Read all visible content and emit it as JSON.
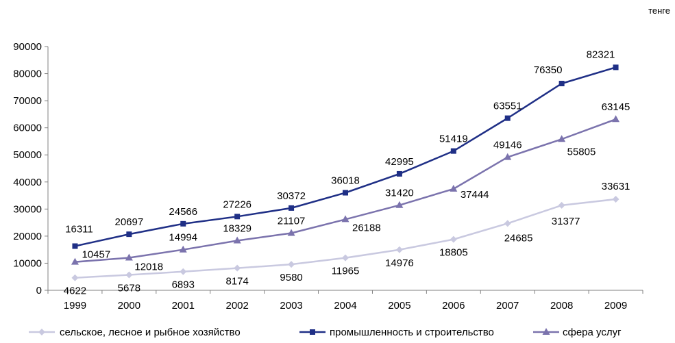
{
  "unit_label": "тенге",
  "chart_data": {
    "type": "line",
    "x": [
      "1999",
      "2000",
      "2001",
      "2002",
      "2003",
      "2004",
      "2005",
      "2006",
      "2007",
      "2008",
      "2009"
    ],
    "ylim": [
      0,
      90000
    ],
    "yticks": [
      0,
      10000,
      20000,
      30000,
      40000,
      50000,
      60000,
      70000,
      80000,
      90000
    ],
    "grid": false,
    "legend": "bottom",
    "series": [
      {
        "name": "сельское, лесное и рыбное хозяйство",
        "values": [
          4622,
          5678,
          6893,
          8174,
          9580,
          11965,
          14976,
          18805,
          24685,
          31377,
          33631
        ],
        "color": "#c9c9e0",
        "marker": "diamond",
        "labels": [
          "4622",
          "5678",
          "6893",
          "8174",
          "9580",
          "11965",
          "14976",
          "18805",
          "24685",
          "31377",
          "33631"
        ]
      },
      {
        "name": "промышленность и строительство",
        "values": [
          16311,
          20697,
          24566,
          27226,
          30372,
          36018,
          42995,
          51419,
          63551,
          76350,
          82321
        ],
        "color": "#1f2f86",
        "marker": "square",
        "labels": [
          "16311",
          "20697",
          "24566",
          "27226",
          "30372",
          "36018",
          "42995",
          "51419",
          "63551",
          "76350",
          "82321"
        ]
      },
      {
        "name": "сфера услуг",
        "values": [
          10457,
          12018,
          14994,
          18329,
          21107,
          26188,
          31420,
          37444,
          49146,
          55805,
          63145
        ],
        "color": "#7b73ad",
        "marker": "triangle",
        "labels": [
          "10457",
          "12018",
          "14994",
          "18329",
          "21107",
          "26188",
          "31420",
          "37444",
          "49146",
          "55805",
          "63145"
        ]
      }
    ]
  }
}
